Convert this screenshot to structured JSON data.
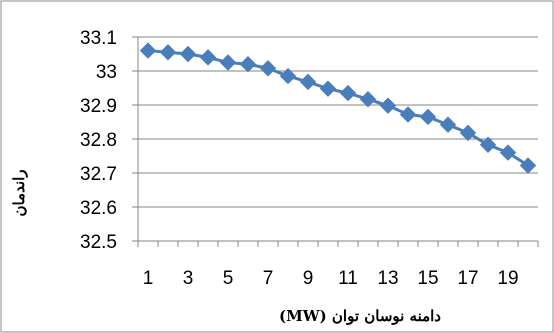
{
  "chart_data": {
    "type": "line",
    "title": "",
    "xlabel": "دامنه نوسان توان (MW)",
    "ylabel": "راندمان",
    "x": [
      1,
      2,
      3,
      4,
      5,
      6,
      7,
      8,
      9,
      10,
      11,
      12,
      13,
      14,
      15,
      16,
      17,
      18,
      19,
      20
    ],
    "series": [
      {
        "values": [
          33.06,
          33.055,
          33.05,
          33.04,
          33.025,
          33.02,
          33.008,
          32.985,
          32.968,
          32.948,
          32.935,
          32.917,
          32.898,
          32.872,
          32.865,
          32.842,
          32.818,
          32.783,
          32.76,
          32.722
        ],
        "color": "#4a7ebb",
        "marker": "diamond"
      }
    ],
    "ylim": [
      32.5,
      33.1
    ],
    "yticks": [
      "32.5",
      "32.6",
      "32.7",
      "32.8",
      "32.9",
      "33",
      "33.1"
    ],
    "xticks": [
      "1",
      "3",
      "5",
      "7",
      "9",
      "11",
      "13",
      "15",
      "17",
      "19"
    ],
    "grid": "horizontal",
    "legend": "none"
  }
}
